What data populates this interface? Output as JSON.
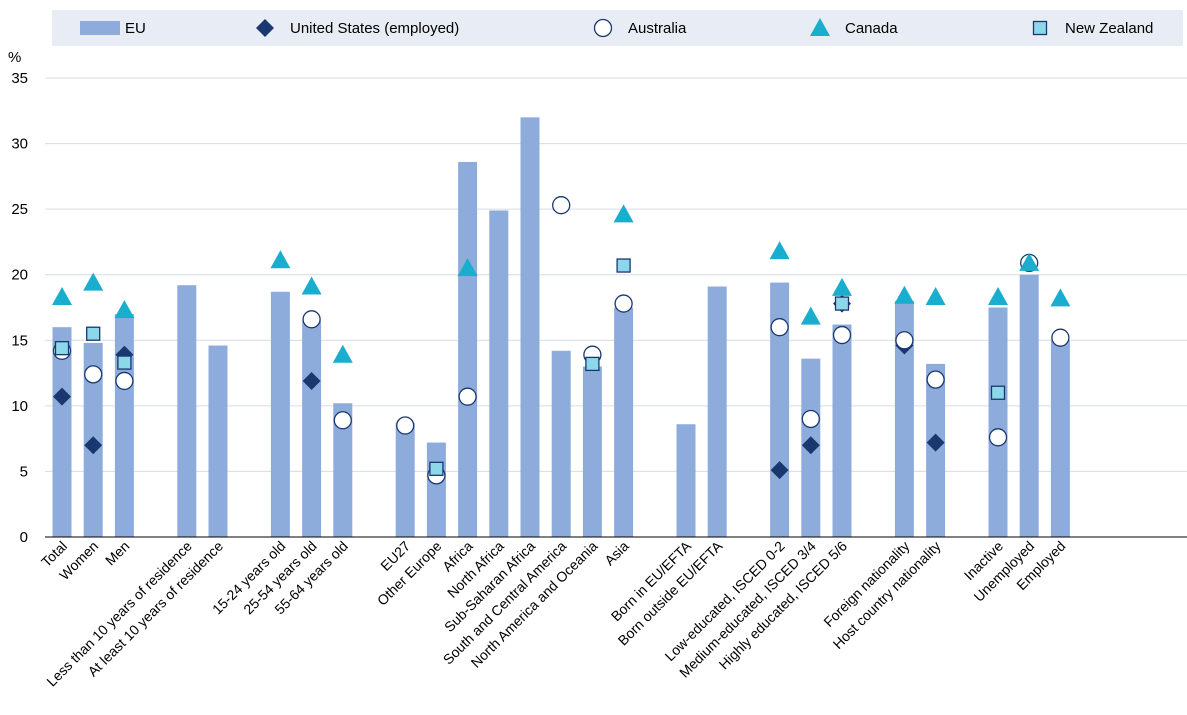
{
  "colors": {
    "eu": "#8eacdb",
    "us": "#1a3870",
    "australia_fill": "#ffffff",
    "australia_stroke": "#1a3870",
    "canada": "#19adce",
    "new_zealand_fill": "#8dd7ea",
    "new_zealand_stroke": "#1a3870",
    "legend_band": "#e8edf5",
    "grid": "#d6dce6"
  },
  "chart_data": {
    "type": "bar",
    "ylabel": "%",
    "ylim": [
      0,
      35
    ],
    "yticks": [
      0,
      5,
      10,
      15,
      20,
      25,
      30,
      35
    ],
    "grid": true,
    "legend_position": "top",
    "categories": [
      "Total",
      "Women",
      "Men",
      "",
      "Less than 10 years of residence",
      "At least 10 years of residence",
      "",
      "15-24 years old",
      "25-54 years old",
      "55-64 years old",
      "",
      "EU27",
      "Other Europe",
      "Africa",
      "North Africa",
      "Sub-Saharan Africa",
      "South and Central America",
      "North America and Oceania",
      "Asia",
      "",
      "Born in EU/EFTA",
      "Born outside EU/EFTA",
      "",
      "Low-educated, ISCED 0-2",
      "Medium-educated, ISCED 3/4",
      "Highly educated, ISCED 5/6",
      "",
      "Foreign nationality",
      "Host country nationality",
      "",
      "Inactive",
      "Unemployed",
      "Employed"
    ],
    "series": [
      {
        "name": "EU",
        "marker": "bar",
        "values": [
          16.0,
          14.8,
          17.0,
          null,
          19.2,
          14.6,
          null,
          18.7,
          16.5,
          10.2,
          null,
          8.7,
          7.2,
          28.6,
          24.9,
          32.0,
          14.2,
          13.0,
          17.5,
          null,
          8.6,
          19.1,
          null,
          19.4,
          13.6,
          16.2,
          null,
          18.0,
          13.2,
          null,
          17.5,
          20.0,
          15.0
        ]
      },
      {
        "name": "United States (employed)",
        "marker": "diamond",
        "values": [
          10.7,
          7.0,
          13.9,
          null,
          null,
          null,
          null,
          null,
          11.9,
          null,
          null,
          null,
          null,
          null,
          null,
          null,
          null,
          null,
          null,
          null,
          null,
          null,
          null,
          5.1,
          7.0,
          17.8,
          null,
          14.6,
          7.2,
          null,
          null,
          null,
          null
        ]
      },
      {
        "name": "Australia",
        "marker": "circle",
        "values": [
          14.2,
          12.4,
          11.9,
          null,
          null,
          null,
          null,
          null,
          16.6,
          8.9,
          null,
          8.5,
          4.7,
          10.7,
          null,
          null,
          25.3,
          13.9,
          17.8,
          null,
          null,
          null,
          null,
          16.0,
          9.0,
          15.4,
          null,
          15.0,
          12.0,
          null,
          7.6,
          20.9,
          15.2
        ]
      },
      {
        "name": "Canada",
        "marker": "triangle",
        "values": [
          18.3,
          19.4,
          17.3,
          null,
          null,
          null,
          null,
          21.1,
          19.1,
          13.9,
          null,
          null,
          null,
          20.5,
          null,
          null,
          null,
          null,
          24.6,
          null,
          null,
          null,
          null,
          21.8,
          16.8,
          19.0,
          null,
          18.4,
          18.3,
          null,
          18.3,
          20.9,
          18.2
        ]
      },
      {
        "name": "New Zealand",
        "marker": "square",
        "values": [
          14.4,
          15.5,
          13.3,
          null,
          null,
          null,
          null,
          null,
          null,
          null,
          null,
          null,
          5.2,
          null,
          null,
          null,
          null,
          13.2,
          20.7,
          null,
          null,
          null,
          null,
          null,
          null,
          17.8,
          null,
          null,
          null,
          null,
          11.0,
          null,
          null
        ]
      }
    ]
  }
}
